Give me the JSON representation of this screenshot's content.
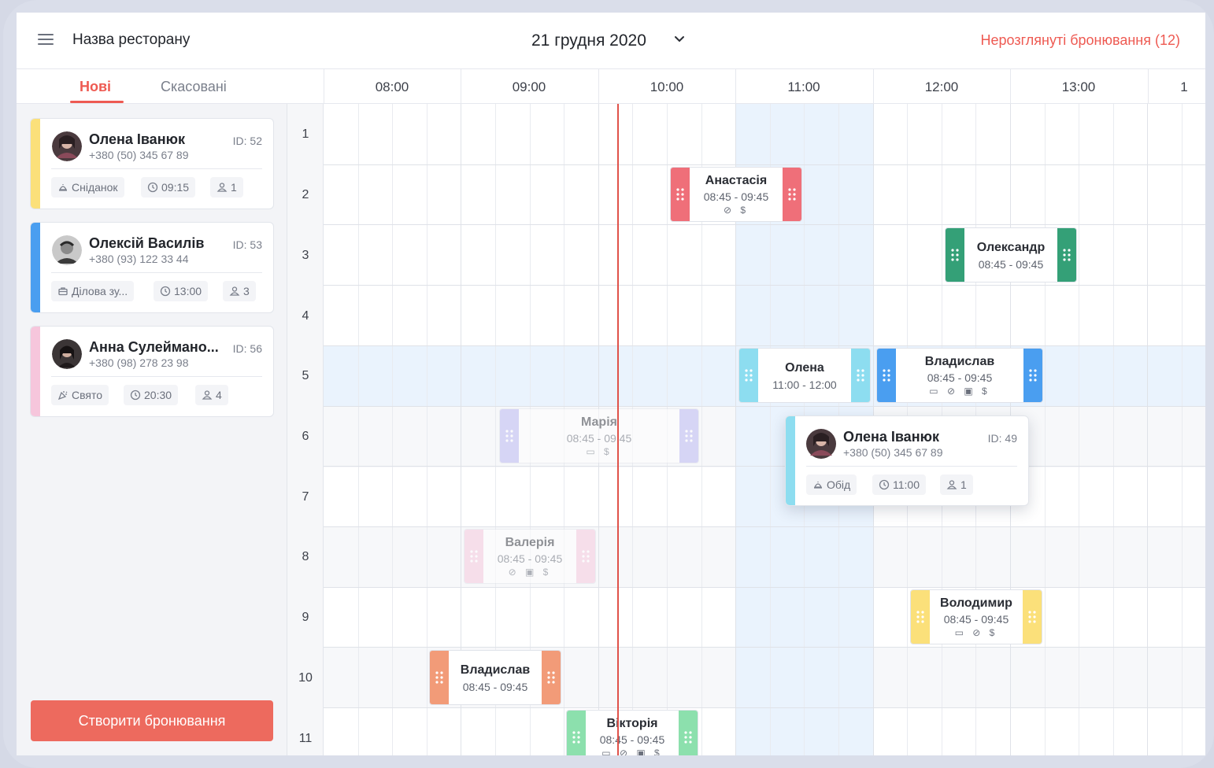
{
  "header": {
    "restaurant": "Назва ресторану",
    "date": "21 грудня 2020",
    "unreviewed": "Нерозглянуті бронювання (12)"
  },
  "sidebar": {
    "tabs": [
      {
        "label": "Нові"
      },
      {
        "label": "Скасовані"
      }
    ],
    "cards": [
      {
        "name": "Олена Іванюк",
        "phone": "+380 (50) 345 67 89",
        "id": "ID: 52",
        "category": "Сніданок",
        "time": "09:15",
        "guests": "1",
        "stripe": "#fbe07a"
      },
      {
        "name": "Олексій Василів",
        "phone": "+380 (93) 122 33 44",
        "id": "ID: 53",
        "category": "Ділова зу...",
        "time": "13:00",
        "guests": "3",
        "stripe": "#4a9ef0"
      },
      {
        "name": "Анна Сулеймано...",
        "phone": "+380 (98) 278 23 98",
        "id": "ID: 56",
        "category": "Свято",
        "time": "20:30",
        "guests": "4",
        "stripe": "#f6c6dc"
      }
    ],
    "create_button": "Створити бронювання"
  },
  "timeline": {
    "hours": [
      "08:00",
      "09:00",
      "10:00",
      "11:00",
      "12:00",
      "13:00",
      "1"
    ],
    "rows": [
      "1",
      "2",
      "3",
      "4",
      "5",
      "6",
      "7",
      "8",
      "9",
      "10",
      "11"
    ]
  },
  "bookings": [
    {
      "name": "Анастасія",
      "time": "08:45 - 09:45",
      "icons": "⊘ $",
      "color": "#ef6f79"
    },
    {
      "name": "Олександр",
      "time": "08:45 - 09:45",
      "icons": "",
      "color": "#34a077"
    },
    {
      "name": "Олена",
      "time": "11:00 - 12:00",
      "icons": "",
      "color": "#8dddf0"
    },
    {
      "name": "Владислав",
      "time": "08:45 - 09:45",
      "icons": "▭ ⊘ ▣ $",
      "color": "#4a9ef0"
    },
    {
      "name": "Марія",
      "time": "08:45 - 09:45",
      "icons": "▭ $",
      "color": "#b7b3f2"
    },
    {
      "name": "Валерія",
      "time": "08:45 - 09:45",
      "icons": "⊘ ▣ $",
      "color": "#f6c6dc"
    },
    {
      "name": "Володимир",
      "time": "08:45 - 09:45",
      "icons": "▭ ⊘ $",
      "color": "#fbe07a"
    },
    {
      "name": "Владислав",
      "time": "08:45 - 09:45",
      "icons": "",
      "color": "#f29b78"
    },
    {
      "name": "Вікторія",
      "time": "08:45 - 09:45",
      "icons": "▭ ⊘ ▣ $",
      "color": "#8ce0ad"
    }
  ],
  "popup": {
    "name": "Олена Іванюк",
    "phone": "+380 (50) 345 67 89",
    "id": "ID: 49",
    "category": "Обід",
    "time": "11:00",
    "guests": "1",
    "stripe": "#8dddf0"
  }
}
